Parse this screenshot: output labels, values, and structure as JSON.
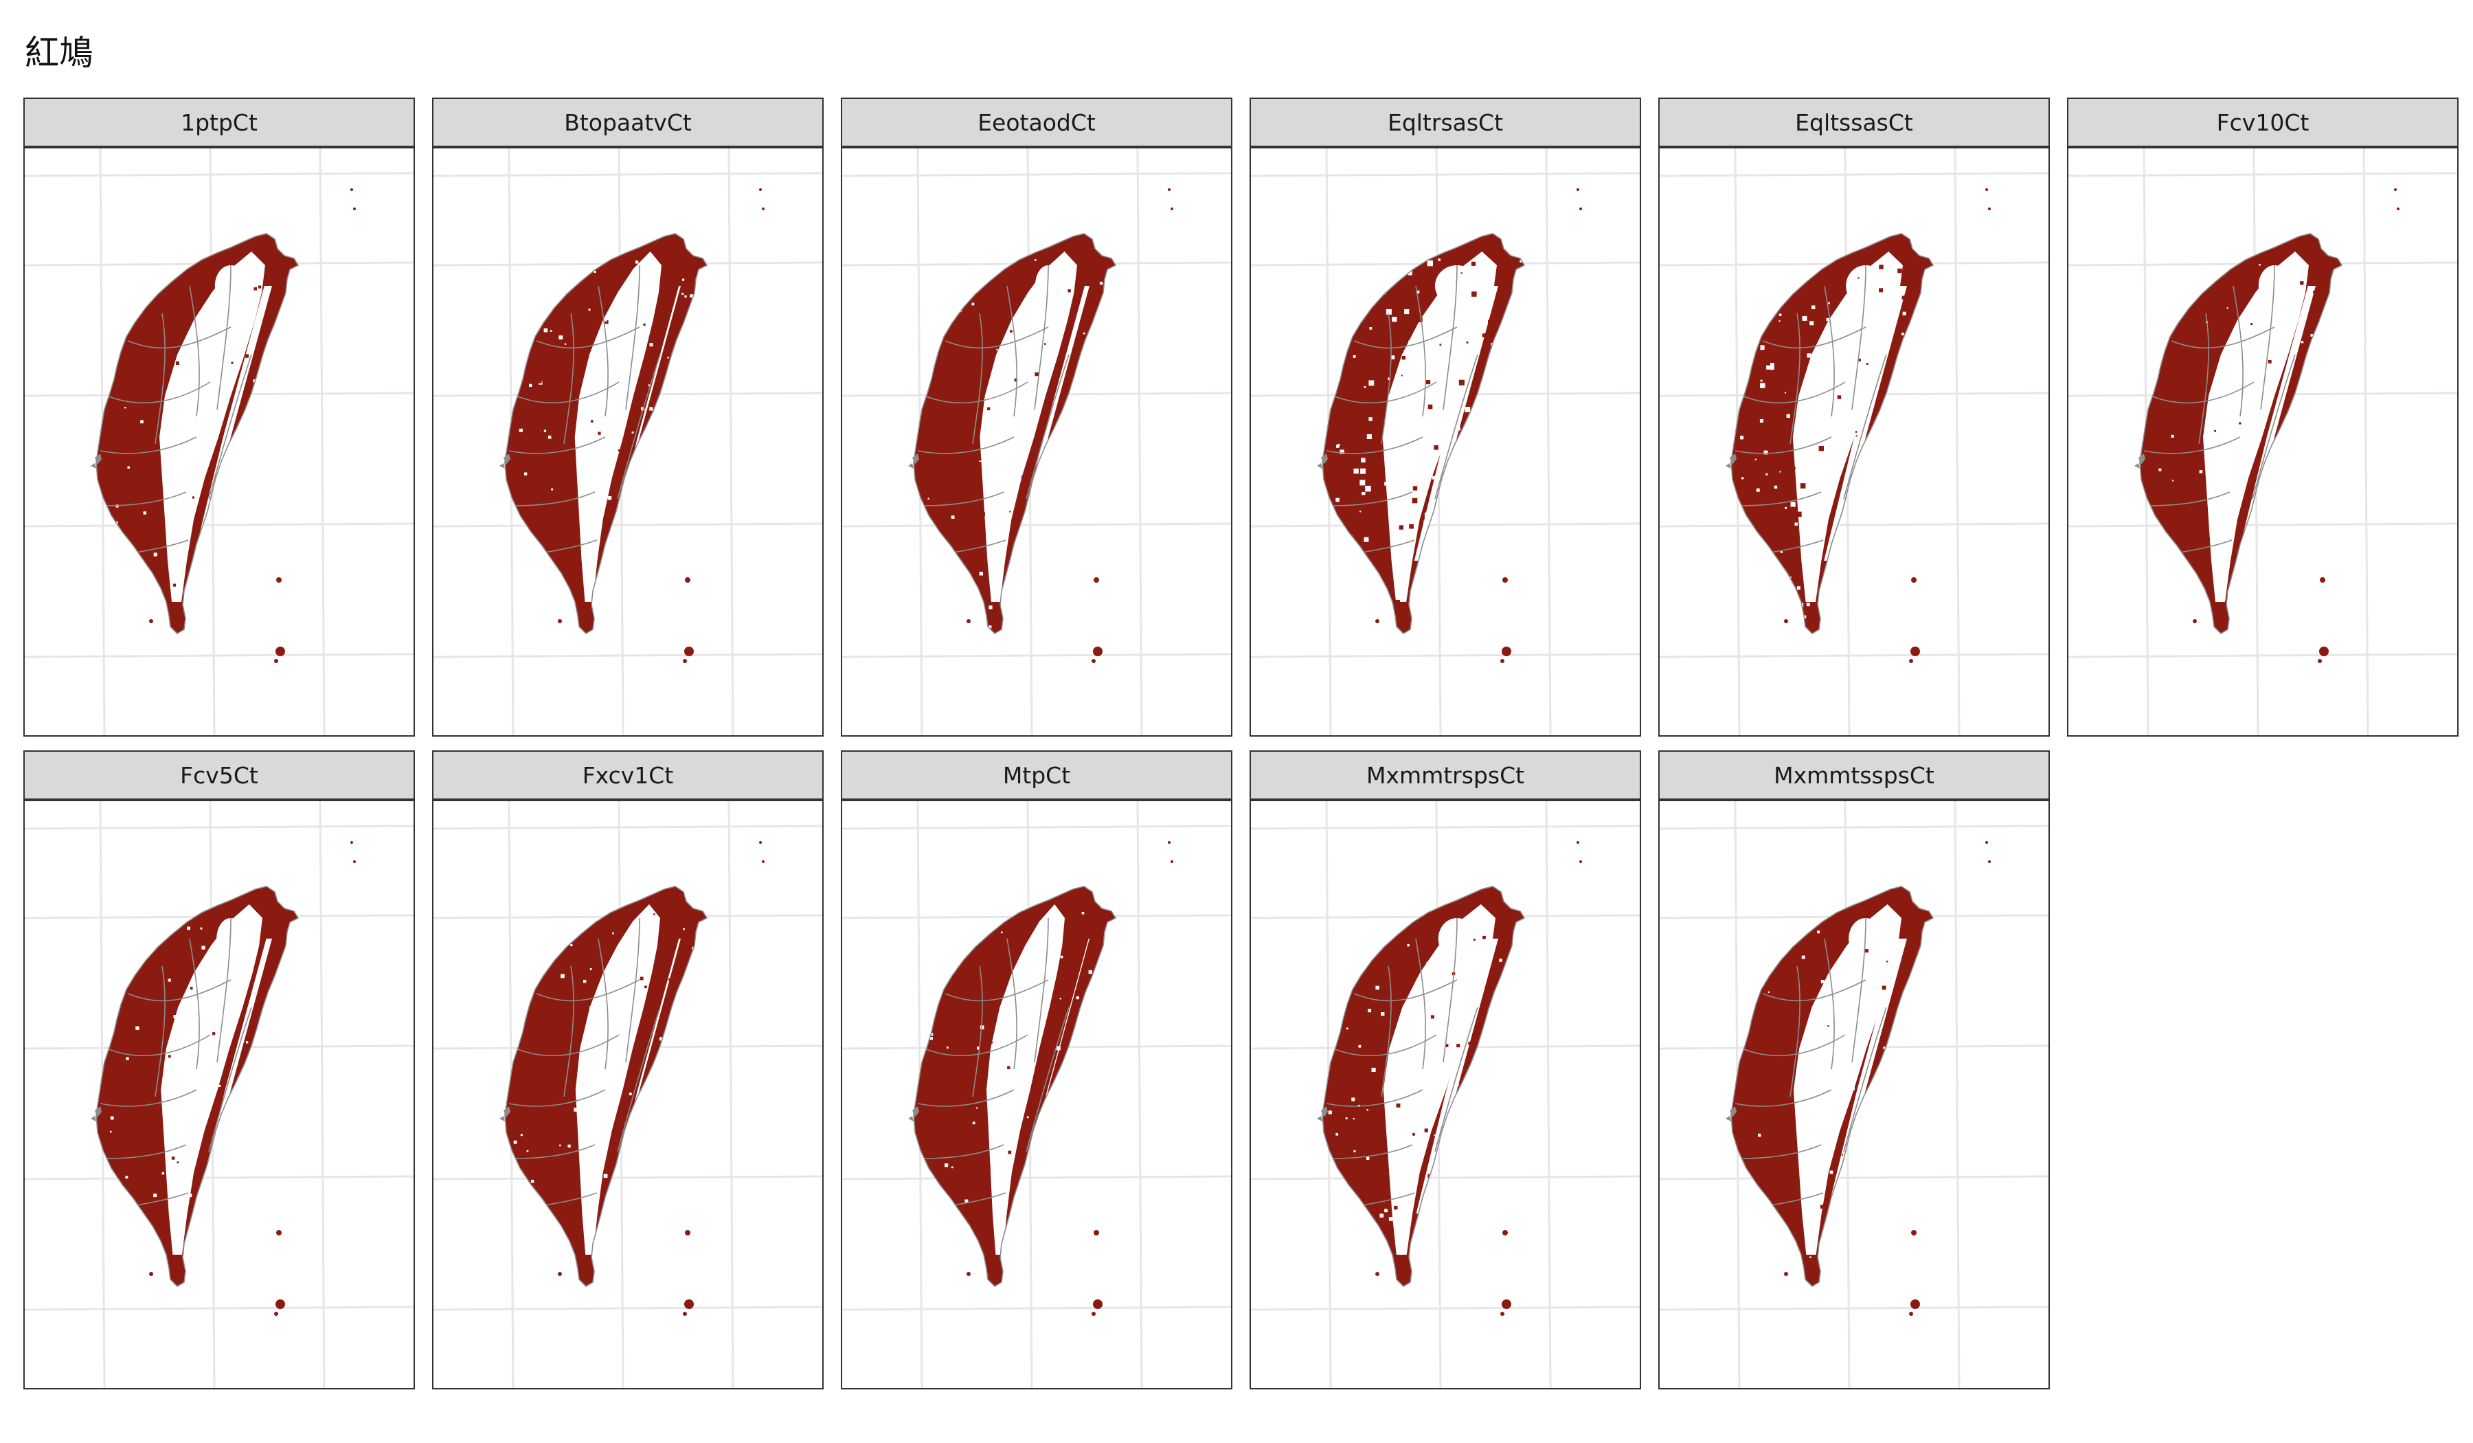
{
  "title": "紅鳩",
  "colors": {
    "presence": "#8b1a10",
    "strip_background": "#d9d9d9",
    "panel_border": "#333333",
    "grid": "#e6e6e6",
    "county_border": "#8c8c8c"
  },
  "facets": [
    {
      "label": "1ptpCt",
      "density": 0.62,
      "mountain_width": 1.0,
      "speckle": 0.05,
      "east_fill": 0.6
    },
    {
      "label": "BtopaatvCt",
      "density": 0.85,
      "mountain_width": 0.55,
      "speckle": 0.1,
      "east_fill": 0.9
    },
    {
      "label": "EeotaodCt",
      "density": 0.72,
      "mountain_width": 0.8,
      "speckle": 0.07,
      "east_fill": 0.75
    },
    {
      "label": "EqltrsasCt",
      "density": 0.4,
      "mountain_width": 1.2,
      "speckle": 0.45,
      "east_fill": 0.35
    },
    {
      "label": "EqltssasCt",
      "density": 0.48,
      "mountain_width": 1.1,
      "speckle": 0.35,
      "east_fill": 0.4
    },
    {
      "label": "Fcv10Ct",
      "density": 0.62,
      "mountain_width": 1.0,
      "speckle": 0.05,
      "east_fill": 0.6
    },
    {
      "label": "Fcv5Ct",
      "density": 0.68,
      "mountain_width": 0.9,
      "speckle": 0.06,
      "east_fill": 0.7
    },
    {
      "label": "Fxcv1Ct",
      "density": 0.85,
      "mountain_width": 0.5,
      "speckle": 0.12,
      "east_fill": 0.9
    },
    {
      "label": "MtpCt",
      "density": 0.92,
      "mountain_width": 0.35,
      "speckle": 0.12,
      "east_fill": 0.95
    },
    {
      "label": "MxmmtrspsCt",
      "density": 0.52,
      "mountain_width": 1.15,
      "speckle": 0.15,
      "east_fill": 0.45
    },
    {
      "label": "MxmmtsspsCt",
      "density": 0.58,
      "mountain_width": 1.05,
      "speckle": 0.12,
      "east_fill": 0.55
    }
  ]
}
